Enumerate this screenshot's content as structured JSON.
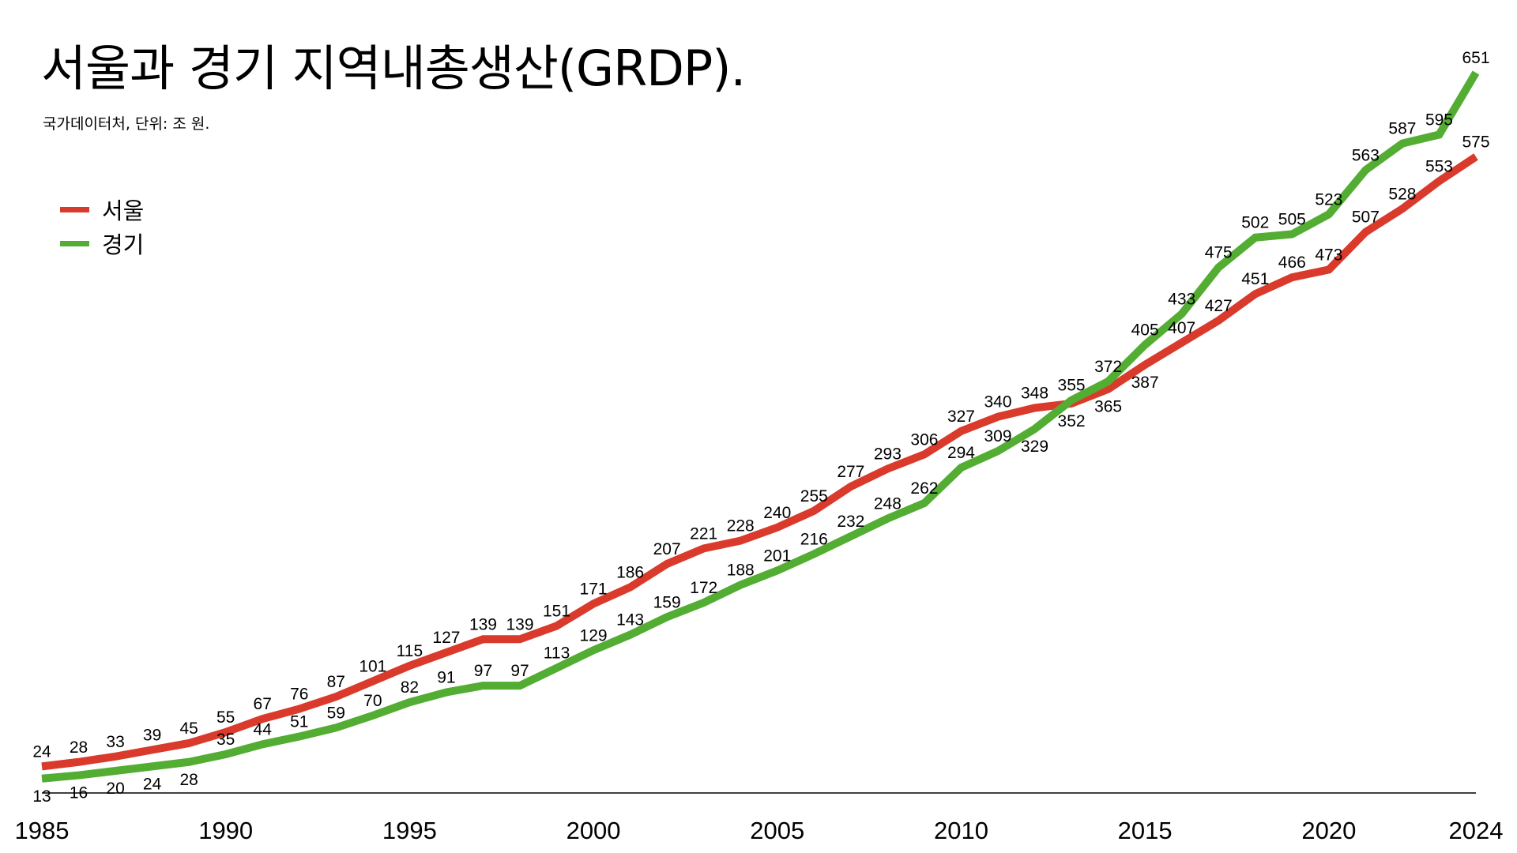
{
  "chart_data": {
    "type": "line",
    "title": "서울과 경기 지역내총생산(GRDP).",
    "subtitle": "국가데이터처, 단위: 조 원.",
    "xlabel": "",
    "ylabel": "",
    "x": [
      1985,
      1986,
      1987,
      1988,
      1989,
      1990,
      1991,
      1992,
      1993,
      1994,
      1995,
      1996,
      1997,
      1998,
      1999,
      2000,
      2001,
      2002,
      2003,
      2004,
      2005,
      2006,
      2007,
      2008,
      2009,
      2010,
      2011,
      2012,
      2013,
      2014,
      2015,
      2016,
      2017,
      2018,
      2019,
      2020,
      2021,
      2022,
      2023,
      2024
    ],
    "x_ticks": [
      "1985",
      "1990",
      "1995",
      "2000",
      "2005",
      "2010",
      "2015",
      "2020",
      "2024"
    ],
    "ylim": [
      0,
      651
    ],
    "grid": false,
    "legend_position": "top-left",
    "series": [
      {
        "name": "서울",
        "color": "#d93a2b",
        "values": [
          24,
          28,
          33,
          39,
          45,
          55,
          67,
          76,
          87,
          101,
          115,
          127,
          139,
          139,
          151,
          171,
          186,
          207,
          221,
          228,
          240,
          255,
          277,
          293,
          306,
          327,
          340,
          348,
          352,
          365,
          387,
          407,
          427,
          451,
          466,
          473,
          507,
          528,
          553,
          575
        ]
      },
      {
        "name": "경기",
        "color": "#52ad32",
        "values": [
          13,
          16,
          20,
          24,
          28,
          35,
          44,
          51,
          59,
          70,
          82,
          91,
          97,
          97,
          113,
          129,
          143,
          159,
          172,
          188,
          201,
          216,
          232,
          248,
          262,
          294,
          309,
          329,
          355,
          372,
          405,
          433,
          475,
          502,
          505,
          523,
          563,
          587,
          595,
          651
        ]
      }
    ]
  }
}
